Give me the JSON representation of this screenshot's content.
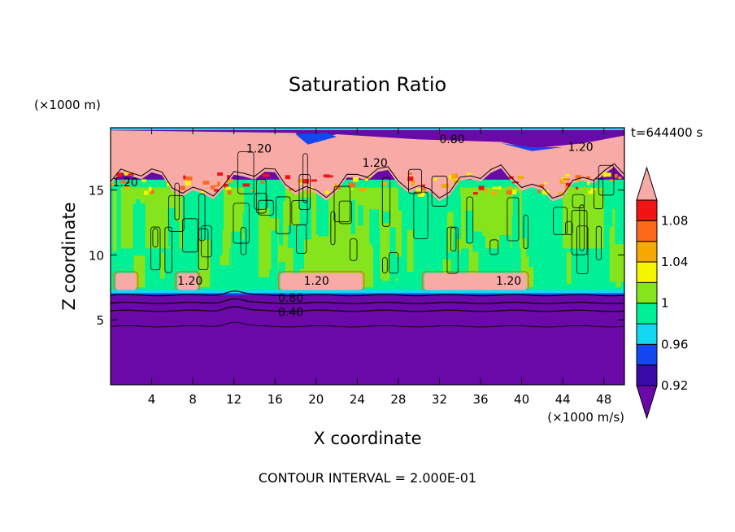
{
  "chart_data": {
    "type": "heatmap",
    "title": "Saturation Ratio",
    "xlabel": "X coordinate",
    "ylabel": "Z coordinate",
    "x_unit": "(×1000 m/s)",
    "y_unit": "(×1000 m)",
    "time_label": "t=644400 s",
    "footer": "CONTOUR INTERVAL = 2.000E-01",
    "xlim": [
      0,
      50
    ],
    "ylim": [
      0,
      19.8
    ],
    "x_ticks": [
      4,
      8,
      12,
      16,
      20,
      24,
      28,
      32,
      36,
      40,
      44,
      48
    ],
    "y_ticks": [
      5,
      10,
      15
    ],
    "colorbar": {
      "labels": [
        {
          "value": 0.92,
          "text": "0.92"
        },
        {
          "value": 0.96,
          "text": "0.96"
        },
        {
          "value": 1.0,
          "text": "1"
        },
        {
          "value": 1.04,
          "text": "1.04"
        },
        {
          "value": 1.08,
          "text": "1.08"
        }
      ],
      "bins": [
        {
          "from": 0.92,
          "to": 0.94,
          "color": "#3a0aa8"
        },
        {
          "from": 0.94,
          "to": 0.96,
          "color": "#1447f0"
        },
        {
          "from": 0.96,
          "to": 0.98,
          "color": "#12d8f2"
        },
        {
          "from": 0.98,
          "to": 1.0,
          "color": "#00f096"
        },
        {
          "from": 1.0,
          "to": 1.02,
          "color": "#86e41c"
        },
        {
          "from": 1.02,
          "to": 1.04,
          "color": "#f5f500"
        },
        {
          "from": 1.04,
          "to": 1.06,
          "color": "#f5a800"
        },
        {
          "from": 1.06,
          "to": 1.08,
          "color": "#fa6a1a"
        },
        {
          "from": 1.08,
          "to": 1.1,
          "color": "#f21414"
        }
      ],
      "under_color": "#6a09a8",
      "over_color": "#f7aaa6",
      "lowest_bin_color": "#4a0aa0"
    },
    "regions": {
      "subsaturated_below_z": 7.0,
      "cloud_layer_z": [
        7.0,
        15.5
      ],
      "supersaturated_top_z": [
        15.5,
        19.8
      ],
      "background_color": "#6a09a8"
    },
    "contour_labels": [
      {
        "text": "0.40",
        "x": 16.3,
        "z": 5.3
      },
      {
        "text": "0.80",
        "x": 16.3,
        "z": 6.4
      },
      {
        "text": "1.20",
        "x": 18.8,
        "z": 7.7
      },
      {
        "text": "1.20",
        "x": 37.5,
        "z": 7.7
      },
      {
        "text": "1.20",
        "x": 13.2,
        "z": 17.9
      },
      {
        "text": "1.20",
        "x": 24.5,
        "z": 16.8
      },
      {
        "text": "0.80",
        "x": 32.0,
        "z": 18.6
      },
      {
        "text": "1.20",
        "x": 44.5,
        "z": 18.0
      },
      {
        "text": "1.20",
        "x": 6.5,
        "z": 7.7
      },
      {
        "text": "1.20",
        "x": 0.2,
        "z": 15.3
      }
    ]
  }
}
